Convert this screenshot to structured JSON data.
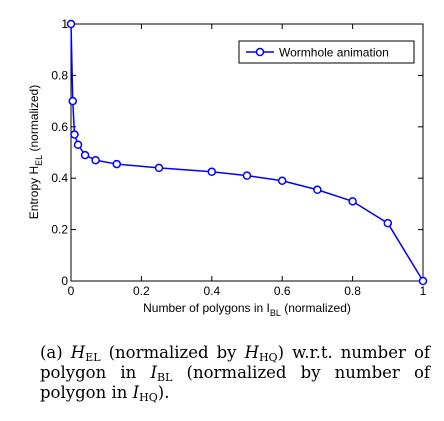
{
  "chart_data": {
    "type": "line",
    "x": [
      0,
      0.005,
      0.01,
      0.02,
      0.04,
      0.07,
      0.13,
      0.25,
      0.4,
      0.5,
      0.6,
      0.7,
      0.8,
      0.9,
      1.0
    ],
    "series": [
      {
        "name": "Wormhole animation",
        "values": [
          1.0,
          0.7,
          0.57,
          0.53,
          0.49,
          0.47,
          0.455,
          0.44,
          0.425,
          0.41,
          0.39,
          0.355,
          0.31,
          0.225,
          0.0
        ],
        "color": "#0000ff",
        "marker": "circle"
      }
    ],
    "xlim": [
      0,
      1
    ],
    "ylim": [
      0,
      1
    ],
    "xticks": [
      0,
      0.2,
      0.4,
      0.6,
      0.8,
      1
    ],
    "xtick_labels": [
      "0",
      "0.2",
      "0.4",
      "0.6",
      "0.8",
      "1"
    ],
    "yticks": [
      0,
      0.2,
      0.4,
      0.6,
      0.8,
      1
    ],
    "ytick_labels": [
      "0",
      "0.2",
      "0.4",
      "0.6",
      "0.8",
      "1"
    ],
    "xlabel": {
      "prefix": "Number of polygons in I",
      "sub": "BL",
      "suffix": " (normalized)"
    },
    "ylabel": {
      "prefix": "Entropy H",
      "sub": "EL",
      "suffix": " (normalized)"
    },
    "legend_position": "top-right",
    "grid": false
  },
  "caption": {
    "label": "(a) ",
    "h": "H",
    "h_sub_el": "EL",
    "t1": " (normalized by ",
    "h_sub_hq": "HQ",
    "t2": ") w.r.t. number of polygon in ",
    "i": "I",
    "i_sub_bl": "BL",
    "t3": " (normalized by number of polygon in ",
    "i_sub_hq": "HQ",
    "t4": ")."
  }
}
